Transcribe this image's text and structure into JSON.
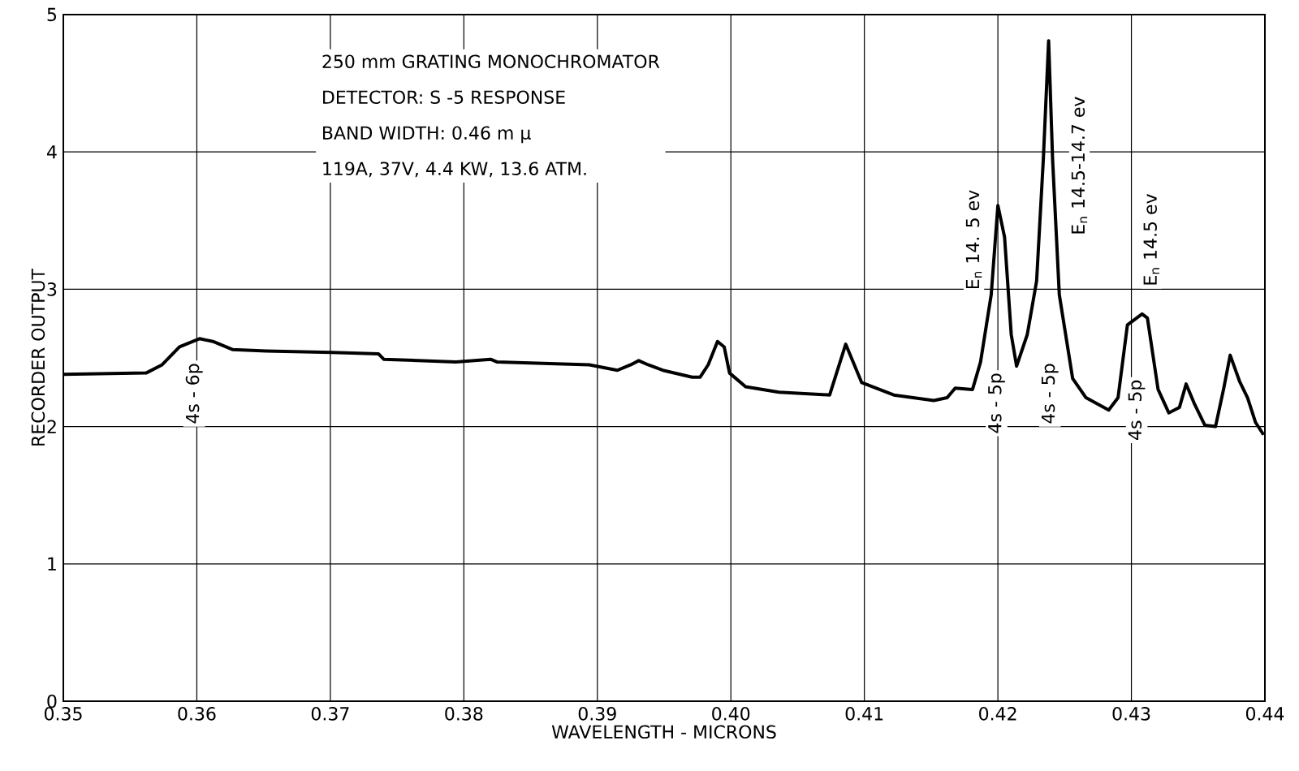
{
  "chart_data": {
    "type": "line",
    "xlabel": "WAVELENGTH - MICRONS",
    "ylabel": "RECORDER OUTPUT",
    "color": "#000000",
    "grid": true,
    "line_style": "solid",
    "marker": "none",
    "xlim": [
      0.35,
      0.44
    ],
    "ylim": [
      0,
      5
    ],
    "xticks": [
      0.35,
      0.36,
      0.37,
      0.38,
      0.39,
      {
        "value": 0.4,
        "label": "0.40"
      },
      0.41,
      0.42,
      0.43,
      0.44
    ],
    "yticks": [
      0,
      1,
      2,
      3,
      4,
      5
    ],
    "x": [
      0.35,
      0.3562,
      0.3574,
      0.3587,
      0.3602,
      0.3612,
      0.3627,
      0.3652,
      0.3701,
      0.3736,
      0.374,
      0.3794,
      0.382,
      0.3825,
      0.3894,
      0.3915,
      0.3925,
      0.3931,
      0.3938,
      0.3949,
      0.3971,
      0.3977,
      0.3983,
      0.399,
      0.3995,
      0.3999,
      0.4011,
      0.4036,
      0.4074,
      0.4086,
      0.4098,
      0.4122,
      0.4152,
      0.4162,
      0.4168,
      0.4181,
      0.4187,
      0.4195,
      0.42,
      0.4205,
      0.421,
      0.4214,
      0.4222,
      0.4229,
      0.4234,
      0.4238,
      0.4241,
      0.4246,
      0.4256,
      0.4266,
      0.4283,
      0.429,
      0.4297,
      0.4308,
      0.4312,
      0.432,
      0.4328,
      0.4336,
      0.4341,
      0.4347,
      0.4355,
      0.4363,
      0.4369,
      0.4374,
      0.4381,
      0.4387,
      0.4393,
      0.4399
    ],
    "values": [
      2.38,
      2.39,
      2.45,
      2.58,
      2.64,
      2.62,
      2.56,
      2.55,
      2.54,
      2.53,
      2.49,
      2.47,
      2.49,
      2.47,
      2.45,
      2.41,
      2.45,
      2.48,
      2.45,
      2.41,
      2.36,
      2.36,
      2.45,
      2.62,
      2.58,
      2.39,
      2.29,
      2.25,
      2.23,
      2.6,
      2.32,
      2.23,
      2.19,
      2.21,
      2.28,
      2.27,
      2.47,
      2.96,
      3.61,
      3.38,
      2.67,
      2.44,
      2.67,
      3.06,
      3.94,
      4.81,
      3.94,
      2.96,
      2.35,
      2.21,
      2.12,
      2.21,
      2.74,
      2.82,
      2.79,
      2.27,
      2.1,
      2.14,
      2.31,
      2.17,
      2.01,
      2.0,
      2.27,
      2.52,
      2.33,
      2.21,
      2.03,
      1.94
    ],
    "annotations": [
      "250 mm GRATING MONOCHROMATOR",
      "DETECTOR: S -5 RESPONSE",
      "BAND WIDTH: 0.46 m μ",
      "119A, 37V, 4.4 KW, 13.6 ATM.",
      "4s - 6p",
      "4s - 5p",
      "4s - 5p",
      "4s - 5p",
      "E$_{n}$ 14. 5 ev",
      "E$_{n}$ 14.5-14.7 ev",
      "E$_{n}$ 14.5 ev"
    ]
  }
}
